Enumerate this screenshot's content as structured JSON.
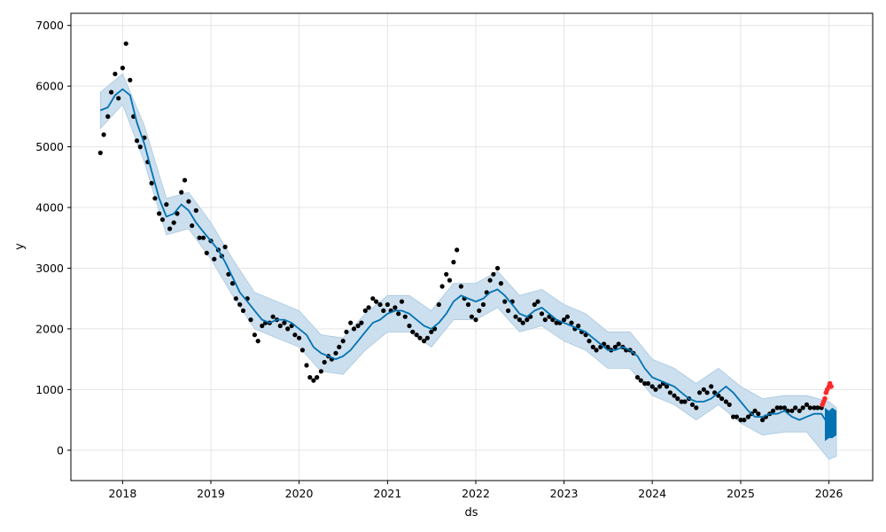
{
  "chart_data": {
    "type": "line",
    "xlabel": "ds",
    "ylabel": "y",
    "xlim": [
      "2017-06-01",
      "2026-07-01"
    ],
    "ylim": [
      -500,
      7200
    ],
    "x_ticks": [
      "2018",
      "2019",
      "2020",
      "2021",
      "2022",
      "2023",
      "2024",
      "2025",
      "2026"
    ],
    "y_ticks": [
      0,
      1000,
      2000,
      3000,
      4000,
      5000,
      6000,
      7000
    ],
    "grid": true,
    "colors": {
      "observed": "#000000",
      "forecast_line": "#0072B2",
      "uncertainty_band": "#c6dcec",
      "recent_points": "#ff2a2a"
    },
    "series": [
      {
        "name": "",
        "kind": "observed-points",
        "x": [
          "2017-10-01",
          "2017-10-15",
          "2017-11-01",
          "2017-11-15",
          "2017-12-01",
          "2017-12-15",
          "2018-01-01",
          "2018-01-15",
          "2018-02-01",
          "2018-02-15",
          "2018-03-01",
          "2018-03-15",
          "2018-04-01",
          "2018-04-15",
          "2018-05-01",
          "2018-05-15",
          "2018-06-01",
          "2018-06-15",
          "2018-07-01",
          "2018-07-15",
          "2018-08-01",
          "2018-08-15",
          "2018-09-01",
          "2018-09-15",
          "2018-10-01",
          "2018-10-15",
          "2018-11-01",
          "2018-11-15",
          "2018-12-01",
          "2018-12-15",
          "2019-01-01",
          "2019-01-15",
          "2019-02-01",
          "2019-02-15",
          "2019-03-01",
          "2019-03-15",
          "2019-04-01",
          "2019-04-15",
          "2019-05-01",
          "2019-05-15",
          "2019-06-01",
          "2019-06-15",
          "2019-07-01",
          "2019-07-15",
          "2019-08-01",
          "2019-08-15",
          "2019-09-01",
          "2019-09-15",
          "2019-10-01",
          "2019-10-15",
          "2019-11-01",
          "2019-11-15",
          "2019-12-01",
          "2019-12-15",
          "2020-01-01",
          "2020-01-15",
          "2020-02-01",
          "2020-02-15",
          "2020-03-01",
          "2020-03-15",
          "2020-04-01",
          "2020-04-15",
          "2020-05-01",
          "2020-05-15",
          "2020-06-01",
          "2020-06-15",
          "2020-07-01",
          "2020-07-15",
          "2020-08-01",
          "2020-08-15",
          "2020-09-01",
          "2020-09-15",
          "2020-10-01",
          "2020-10-15",
          "2020-11-01",
          "2020-11-15",
          "2020-12-01",
          "2020-12-15",
          "2021-01-01",
          "2021-01-15",
          "2021-02-01",
          "2021-02-15",
          "2021-03-01",
          "2021-03-15",
          "2021-04-01",
          "2021-04-15",
          "2021-05-01",
          "2021-05-15",
          "2021-06-01",
          "2021-06-15",
          "2021-07-01",
          "2021-07-15",
          "2021-08-01",
          "2021-08-15",
          "2021-09-01",
          "2021-09-15",
          "2021-10-01",
          "2021-10-15",
          "2021-11-01",
          "2021-11-15",
          "2021-12-01",
          "2021-12-15",
          "2022-01-01",
          "2022-01-15",
          "2022-02-01",
          "2022-02-15",
          "2022-03-01",
          "2022-03-15",
          "2022-04-01",
          "2022-04-15",
          "2022-05-01",
          "2022-05-15",
          "2022-06-01",
          "2022-06-15",
          "2022-07-01",
          "2022-07-15",
          "2022-08-01",
          "2022-08-15",
          "2022-09-01",
          "2022-09-15",
          "2022-10-01",
          "2022-10-15",
          "2022-11-01",
          "2022-11-15",
          "2022-12-01",
          "2022-12-15",
          "2023-01-01",
          "2023-01-15",
          "2023-02-01",
          "2023-02-15",
          "2023-03-01",
          "2023-03-15",
          "2023-04-01",
          "2023-04-15",
          "2023-05-01",
          "2023-05-15",
          "2023-06-01",
          "2023-06-15",
          "2023-07-01",
          "2023-07-15",
          "2023-08-01",
          "2023-08-15",
          "2023-09-01",
          "2023-09-15",
          "2023-10-01",
          "2023-10-15",
          "2023-11-01",
          "2023-11-15",
          "2023-12-01",
          "2023-12-15",
          "2024-01-01",
          "2024-01-15",
          "2024-02-01",
          "2024-02-15",
          "2024-03-01",
          "2024-03-15",
          "2024-04-01",
          "2024-04-15",
          "2024-05-01",
          "2024-05-15",
          "2024-06-01",
          "2024-06-15",
          "2024-07-01",
          "2024-07-15",
          "2024-08-01",
          "2024-08-15",
          "2024-09-01",
          "2024-09-15",
          "2024-10-01",
          "2024-10-15",
          "2024-11-01",
          "2024-11-15",
          "2024-12-01",
          "2024-12-15",
          "2025-01-01",
          "2025-01-15",
          "2025-02-01",
          "2025-02-15",
          "2025-03-01",
          "2025-03-15",
          "2025-04-01",
          "2025-04-15",
          "2025-05-01",
          "2025-05-15",
          "2025-06-01",
          "2025-06-15",
          "2025-07-01",
          "2025-07-15",
          "2025-08-01",
          "2025-08-15",
          "2025-09-01",
          "2025-09-15",
          "2025-10-01",
          "2025-10-15",
          "2025-11-01",
          "2025-11-15",
          "2025-12-01"
        ],
        "values": [
          4900,
          5200,
          5500,
          5900,
          6200,
          5800,
          6300,
          6700,
          6100,
          5500,
          5100,
          5000,
          5150,
          4750,
          4400,
          4150,
          3900,
          3800,
          4050,
          3650,
          3750,
          3900,
          4250,
          4450,
          4100,
          3700,
          3950,
          3500,
          3500,
          3250,
          3450,
          3150,
          3300,
          3200,
          3350,
          2900,
          2750,
          2500,
          2400,
          2300,
          2500,
          2150,
          1900,
          1800,
          2050,
          2100,
          2100,
          2200,
          2150,
          2050,
          2100,
          2000,
          2050,
          1900,
          1850,
          1650,
          1400,
          1200,
          1150,
          1200,
          1300,
          1450,
          1550,
          1500,
          1600,
          1700,
          1800,
          1950,
          2100,
          2000,
          2050,
          2100,
          2300,
          2350,
          2500,
          2450,
          2400,
          2300,
          2400,
          2300,
          2350,
          2250,
          2450,
          2200,
          2050,
          1950,
          1900,
          1850,
          1800,
          1850,
          1950,
          2000,
          2400,
          2700,
          2900,
          2800,
          3100,
          3300,
          2700,
          2500,
          2400,
          2200,
          2150,
          2300,
          2400,
          2600,
          2800,
          2900,
          3000,
          2750,
          2450,
          2300,
          2450,
          2200,
          2150,
          2100,
          2150,
          2200,
          2400,
          2450,
          2250,
          2150,
          2200,
          2150,
          2100,
          2100,
          2150,
          2200,
          2100,
          2000,
          2050,
          1950,
          1900,
          1800,
          1700,
          1650,
          1700,
          1750,
          1700,
          1650,
          1700,
          1750,
          1700,
          1650,
          1650,
          1600,
          1200,
          1150,
          1100,
          1100,
          1050,
          1000,
          1050,
          1100,
          1050,
          950,
          900,
          850,
          800,
          800,
          850,
          750,
          700,
          950,
          1000,
          950,
          1050,
          950,
          900,
          850,
          800,
          750,
          550,
          550,
          500,
          500,
          550,
          600,
          650,
          600,
          500,
          550,
          600,
          650,
          700,
          700,
          700,
          650,
          650,
          700,
          650,
          700,
          750,
          700,
          700,
          700,
          700
        ]
      },
      {
        "name": "",
        "kind": "recent-points",
        "x": [
          "2025-12-05",
          "2025-12-10",
          "2025-12-15",
          "2025-12-20",
          "2025-12-25",
          "2026-01-01",
          "2026-01-05",
          "2026-01-10"
        ],
        "values": [
          750,
          800,
          850,
          950,
          1000,
          1050,
          1100,
          1050
        ]
      },
      {
        "name": "",
        "kind": "trend-line",
        "x": [
          "2017-10-01",
          "2017-11-01",
          "2017-12-01",
          "2018-01-01",
          "2018-02-01",
          "2018-03-01",
          "2018-04-01",
          "2018-05-01",
          "2018-06-01",
          "2018-07-01",
          "2018-08-01",
          "2018-09-01",
          "2018-10-01",
          "2018-11-01",
          "2018-12-01",
          "2019-01-01",
          "2019-02-01",
          "2019-03-01",
          "2019-04-01",
          "2019-05-01",
          "2019-06-01",
          "2019-07-01",
          "2019-08-01",
          "2019-09-01",
          "2019-10-01",
          "2019-11-01",
          "2019-12-01",
          "2020-01-01",
          "2020-02-01",
          "2020-03-01",
          "2020-04-01",
          "2020-05-01",
          "2020-06-01",
          "2020-07-01",
          "2020-08-01",
          "2020-09-01",
          "2020-10-01",
          "2020-11-01",
          "2020-12-01",
          "2021-01-01",
          "2021-02-01",
          "2021-03-01",
          "2021-04-01",
          "2021-05-01",
          "2021-06-01",
          "2021-07-01",
          "2021-08-01",
          "2021-09-01",
          "2021-10-01",
          "2021-11-01",
          "2021-12-01",
          "2022-01-01",
          "2022-02-01",
          "2022-03-01",
          "2022-04-01",
          "2022-05-01",
          "2022-06-01",
          "2022-07-01",
          "2022-08-01",
          "2022-09-01",
          "2022-10-01",
          "2022-11-01",
          "2022-12-01",
          "2023-01-01",
          "2023-02-01",
          "2023-03-01",
          "2023-04-01",
          "2023-05-01",
          "2023-06-01",
          "2023-07-01",
          "2023-08-01",
          "2023-09-01",
          "2023-10-01",
          "2023-11-01",
          "2023-12-01",
          "2024-01-01",
          "2024-02-01",
          "2024-03-01",
          "2024-04-01",
          "2024-05-01",
          "2024-06-01",
          "2024-07-01",
          "2024-08-01",
          "2024-09-01",
          "2024-10-01",
          "2024-11-01",
          "2024-12-01",
          "2025-01-01",
          "2025-02-01",
          "2025-03-01",
          "2025-04-01",
          "2025-05-01",
          "2025-06-01",
          "2025-07-01",
          "2025-08-01",
          "2025-09-01",
          "2025-10-01",
          "2025-11-01",
          "2025-12-01",
          "2026-01-01"
        ],
        "values": [
          5600,
          5650,
          5850,
          5950,
          5850,
          5400,
          5050,
          4600,
          4150,
          3850,
          3900,
          4050,
          3950,
          3750,
          3600,
          3450,
          3300,
          3100,
          2850,
          2600,
          2450,
          2300,
          2150,
          2100,
          2150,
          2150,
          2100,
          2000,
          1900,
          1700,
          1600,
          1550,
          1500,
          1550,
          1650,
          1800,
          1950,
          2100,
          2150,
          2250,
          2300,
          2300,
          2250,
          2150,
          2050,
          2000,
          2100,
          2250,
          2450,
          2550,
          2500,
          2450,
          2500,
          2600,
          2650,
          2550,
          2400,
          2250,
          2200,
          2300,
          2350,
          2250,
          2150,
          2100,
          2050,
          2000,
          1950,
          1850,
          1750,
          1650,
          1650,
          1700,
          1650,
          1550,
          1350,
          1200,
          1150,
          1100,
          1050,
          950,
          850,
          800,
          800,
          850,
          950,
          1050,
          950,
          800,
          650,
          550,
          550,
          600,
          600,
          650,
          550,
          500,
          550,
          600,
          600,
          400
        ]
      },
      {
        "name": "",
        "kind": "uncertainty-upper",
        "x": [
          "2017-10-01",
          "2018-01-01",
          "2018-04-01",
          "2018-07-01",
          "2018-10-01",
          "2019-01-01",
          "2019-04-01",
          "2019-07-01",
          "2019-10-01",
          "2020-01-01",
          "2020-04-01",
          "2020-07-01",
          "2020-10-01",
          "2021-01-01",
          "2021-04-01",
          "2021-07-01",
          "2021-10-01",
          "2022-01-01",
          "2022-04-01",
          "2022-07-01",
          "2022-10-01",
          "2023-01-01",
          "2023-04-01",
          "2023-07-01",
          "2023-10-01",
          "2024-01-01",
          "2024-04-01",
          "2024-07-01",
          "2024-10-01",
          "2025-01-01",
          "2025-04-01",
          "2025-07-01",
          "2025-10-01",
          "2026-01-01",
          "2026-02-01"
        ],
        "values": [
          5900,
          6200,
          5350,
          4150,
          4250,
          3750,
          3150,
          2600,
          2450,
          2300,
          1900,
          1850,
          2250,
          2550,
          2550,
          2300,
          2750,
          2750,
          2950,
          2550,
          2650,
          2400,
          2250,
          1950,
          1950,
          1500,
          1350,
          1100,
          1350,
          1050,
          850,
          900,
          900,
          800,
          700
        ]
      },
      {
        "name": "",
        "kind": "uncertainty-lower",
        "x": [
          "2017-10-01",
          "2018-01-01",
          "2018-04-01",
          "2018-07-01",
          "2018-10-01",
          "2019-01-01",
          "2019-04-01",
          "2019-07-01",
          "2019-10-01",
          "2020-01-01",
          "2020-04-01",
          "2020-07-01",
          "2020-10-01",
          "2021-01-01",
          "2021-04-01",
          "2021-07-01",
          "2021-10-01",
          "2022-01-01",
          "2022-04-01",
          "2022-07-01",
          "2022-10-01",
          "2023-01-01",
          "2023-04-01",
          "2023-07-01",
          "2023-10-01",
          "2024-01-01",
          "2024-04-01",
          "2024-07-01",
          "2024-10-01",
          "2025-01-01",
          "2025-04-01",
          "2025-07-01",
          "2025-10-01",
          "2026-01-01",
          "2026-02-01"
        ],
        "values": [
          5300,
          5700,
          4750,
          3550,
          3650,
          3150,
          2550,
          2000,
          1850,
          1700,
          1300,
          1250,
          1650,
          1950,
          1950,
          1700,
          2150,
          2150,
          2350,
          1950,
          2050,
          1800,
          1650,
          1350,
          1350,
          900,
          750,
          500,
          750,
          450,
          250,
          300,
          300,
          -150,
          -100
        ]
      },
      {
        "name": "",
        "kind": "forecast-fill",
        "x": [
          "2025-12-15",
          "2026-01-01",
          "2026-01-15",
          "2026-02-01"
        ],
        "upper": [
          700,
          650,
          700,
          650
        ],
        "lower": [
          150,
          200,
          200,
          250
        ]
      }
    ]
  }
}
